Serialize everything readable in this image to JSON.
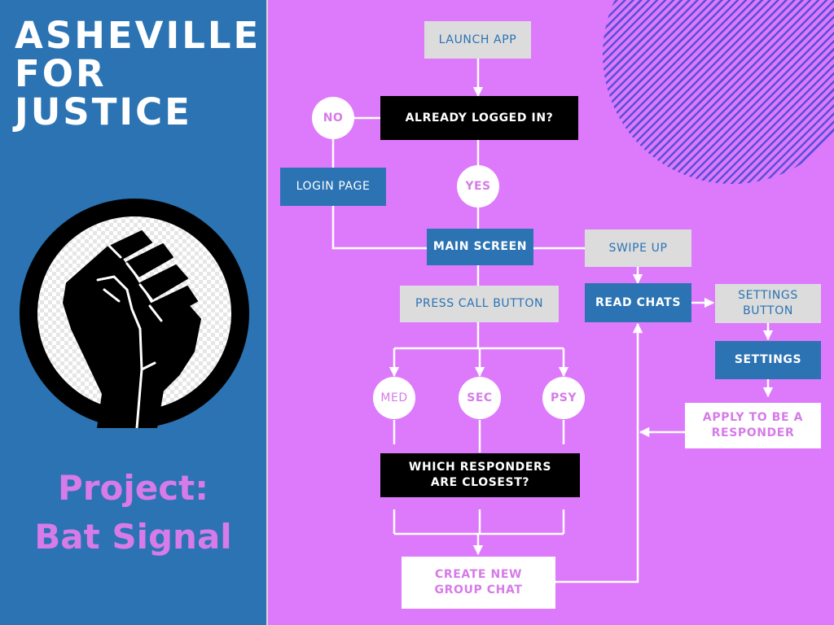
{
  "brand": {
    "title_lines": [
      "ASHEVILLE",
      "FOR",
      "JUSTICE"
    ]
  },
  "emblem": {
    "icon": "raised-fist-icon"
  },
  "project": {
    "lines": [
      "Project:",
      "Bat Signal"
    ]
  },
  "colors": {
    "left_panel": "#2b73b3",
    "right_panel": "#dd7afb",
    "accent_purple": "#d67be8",
    "stripe": "#5a4fd8"
  },
  "flow": {
    "launch_app": "LAUNCH APP",
    "already_logged_in": "ALREADY LOGGED IN?",
    "no": "NO",
    "yes": "YES",
    "login_page": "LOGIN PAGE",
    "main_screen": "MAIN SCREEN",
    "swipe_up": "SWIPE UP",
    "press_call_button": "PRESS CALL BUTTON",
    "read_chats": "READ CHATS",
    "settings_button": "SETTINGS BUTTON",
    "settings": "SETTINGS",
    "med": "MED",
    "sec": "SEC",
    "psy": "PSY",
    "apply_responder": "APPLY TO BE A RESPONDER",
    "which_responders": "WHICH RESPONDERS ARE CLOSEST?",
    "create_group_chat": "CREATE NEW GROUP CHAT"
  }
}
